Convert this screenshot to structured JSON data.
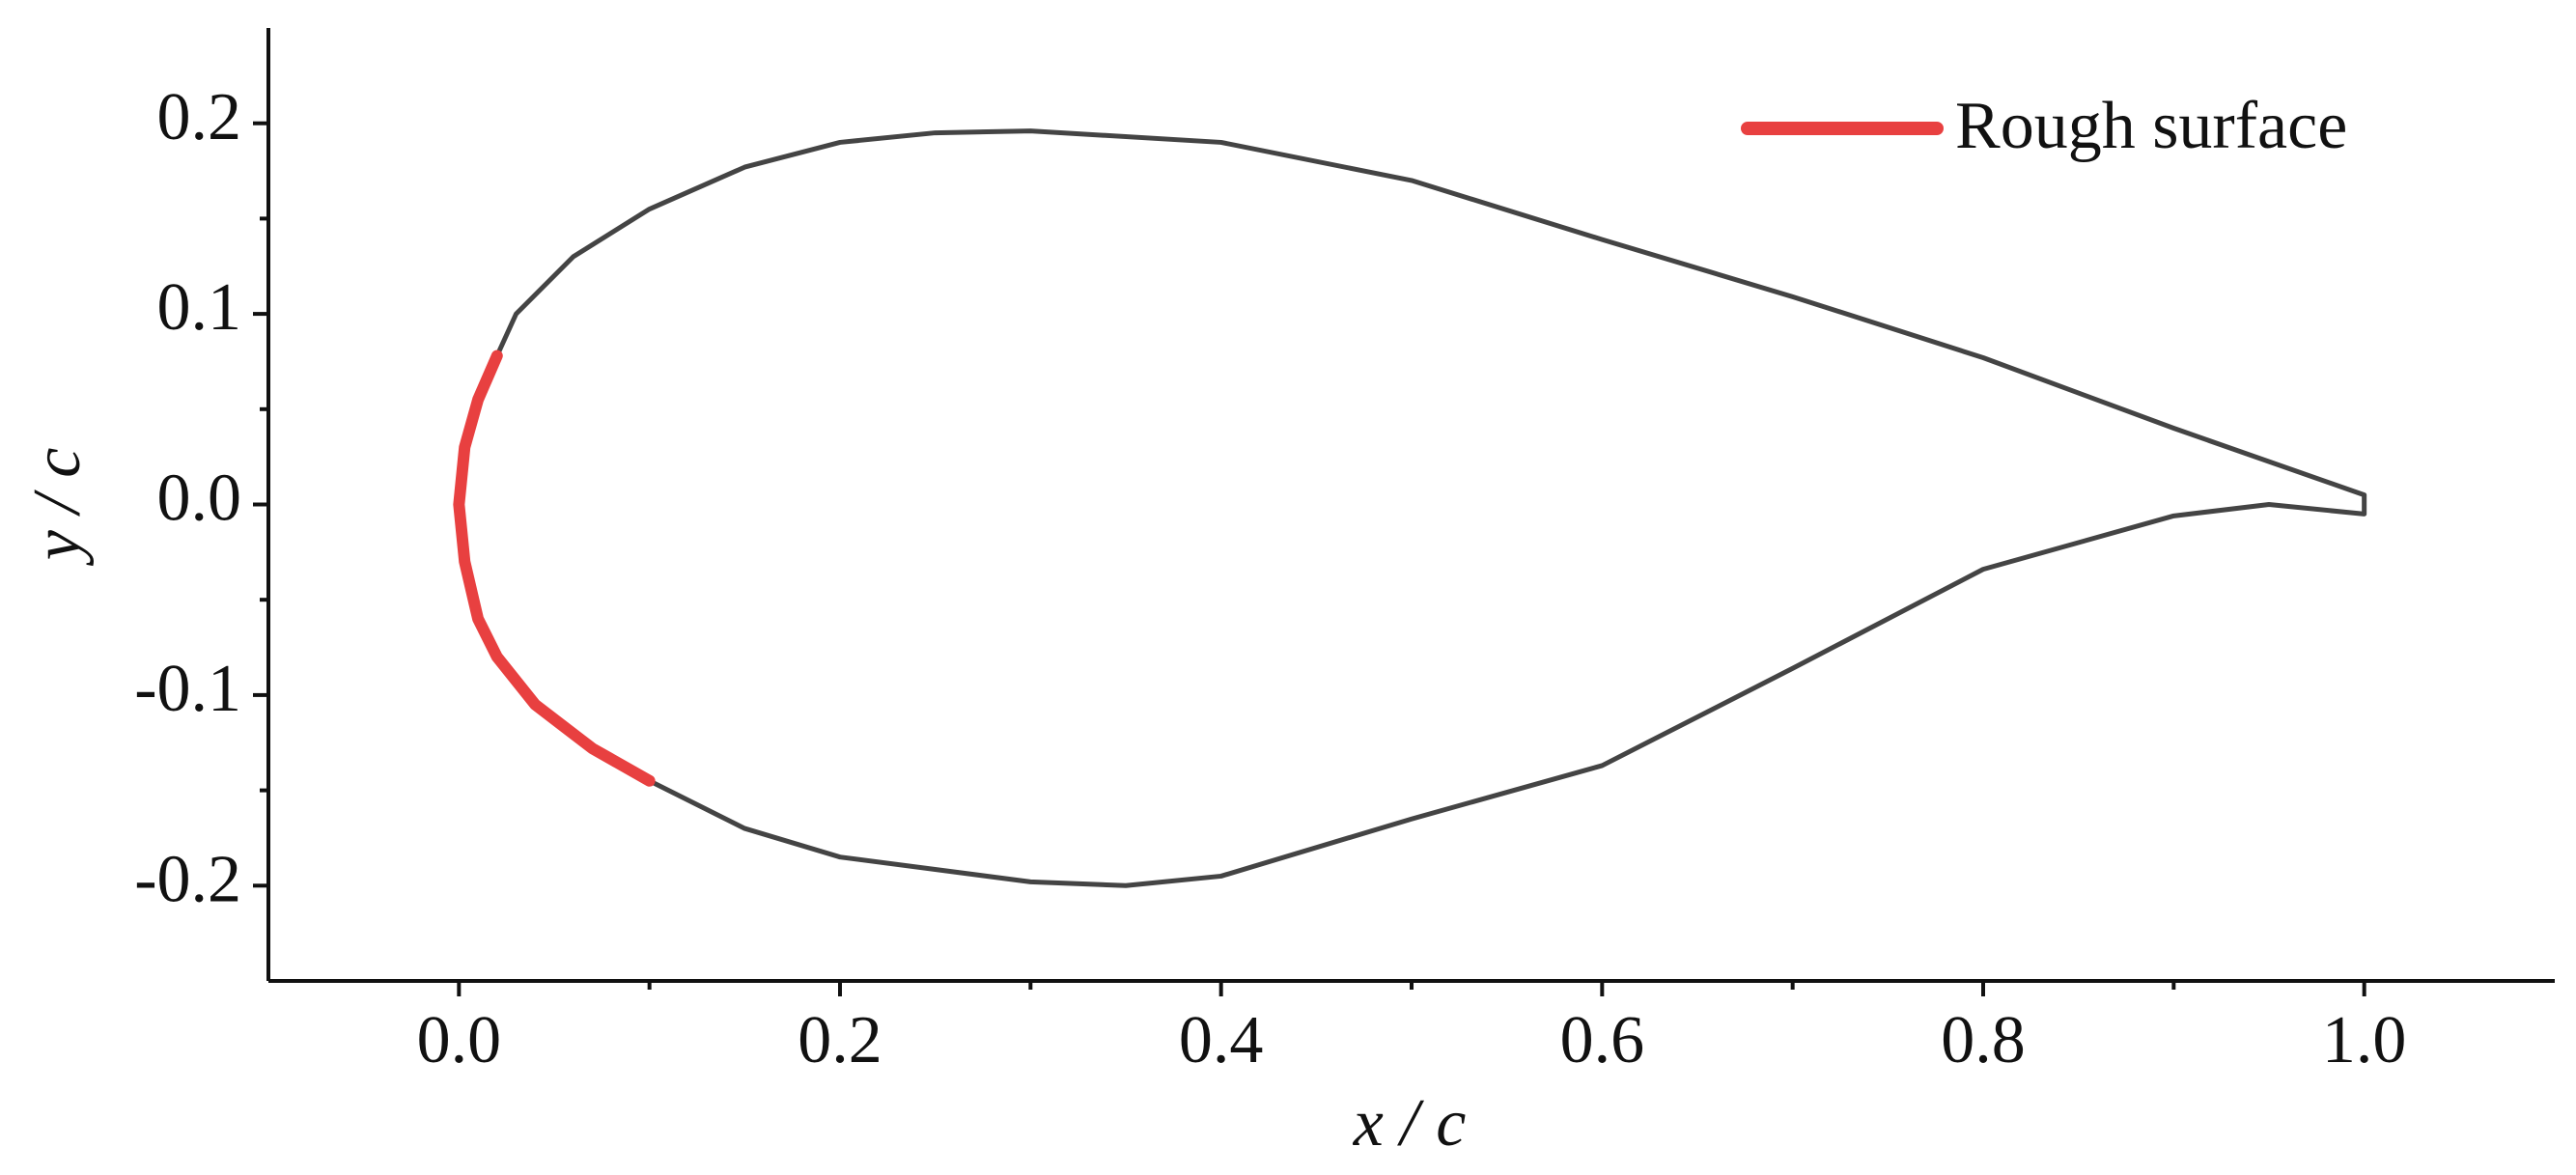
{
  "chart_data": {
    "type": "line",
    "xlabel": "x / c",
    "ylabel": "y / c",
    "xlim": [
      -0.1,
      1.1
    ],
    "ylim": [
      -0.25,
      0.25
    ],
    "xticks": [
      {
        "value": 0,
        "label": "0.0"
      },
      0.2,
      0.4,
      0.6,
      0.8,
      {
        "value": 1,
        "label": "1.0"
      }
    ],
    "yticks": [
      -0.2,
      -0.1,
      {
        "value": 0,
        "label": "0.0"
      },
      0.1,
      0.2
    ],
    "legend": "upper right",
    "series": [
      {
        "color": "#444444",
        "x": [
          1.0,
          0.9,
          0.8,
          0.7,
          0.6,
          0.5,
          0.4,
          0.3,
          0.25,
          0.2,
          0.15,
          0.1,
          0.06,
          0.03,
          0.02,
          0.01,
          0.003,
          0.0,
          0.003,
          0.01,
          0.02,
          0.04,
          0.07,
          0.1,
          0.15,
          0.2,
          0.3,
          0.35,
          0.4,
          0.5,
          0.6,
          0.7,
          0.8,
          0.9,
          0.95,
          1.0,
          1.0
        ],
        "y": [
          0.005,
          0.04,
          0.077,
          0.109,
          0.139,
          0.17,
          0.19,
          0.196,
          0.195,
          0.19,
          0.177,
          0.155,
          0.13,
          0.1,
          0.078,
          0.055,
          0.03,
          0.0,
          -0.03,
          -0.06,
          -0.08,
          -0.105,
          -0.128,
          -0.145,
          -0.17,
          -0.185,
          -0.198,
          -0.2,
          -0.195,
          -0.165,
          -0.137,
          -0.086,
          -0.034,
          -0.006,
          0.0,
          -0.005,
          0.005
        ]
      },
      {
        "name": "Rough surface",
        "color": "#e84040",
        "x": [
          0.02,
          0.01,
          0.003,
          0.0,
          0.003,
          0.01,
          0.02,
          0.04,
          0.07,
          0.1
        ],
        "y": [
          0.078,
          0.055,
          0.03,
          0.0,
          -0.03,
          -0.06,
          -0.08,
          -0.105,
          -0.128,
          -0.145
        ]
      }
    ]
  }
}
